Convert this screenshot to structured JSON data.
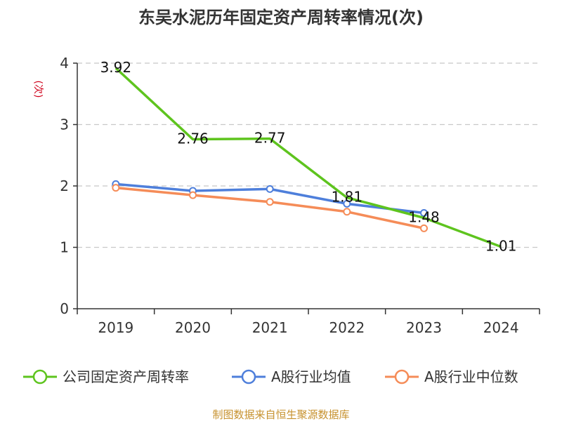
{
  "chart_data": {
    "type": "line",
    "title": "东吴水泥历年固定资产周转率情况(次)",
    "ylabel": "(次)",
    "categories": [
      "2019",
      "2020",
      "2021",
      "2022",
      "2023",
      "2024"
    ],
    "ylim": [
      0,
      4
    ],
    "yticks": [
      "0",
      "1",
      "2",
      "3",
      "4"
    ],
    "grid": true,
    "legend_position": "bottom",
    "series": [
      {
        "name": "公司固定资产周转率",
        "color": "#5ec41e",
        "values": [
          3.92,
          2.76,
          2.77,
          1.81,
          1.48,
          1.01
        ],
        "labels": [
          "3.92",
          "2.76",
          "2.77",
          "1.81",
          "1.48",
          "1.01"
        ],
        "show_markers": false
      },
      {
        "name": "A股行业均值",
        "color": "#4e7fdb",
        "values": [
          2.03,
          1.92,
          1.95,
          1.71,
          1.56,
          null
        ],
        "show_markers": true
      },
      {
        "name": "A股行业中位数",
        "color": "#f58c58",
        "values": [
          1.97,
          1.85,
          1.74,
          1.58,
          1.31,
          null
        ],
        "show_markers": true
      }
    ]
  },
  "source": {
    "text": "制图数据来自恒生聚源数据库",
    "color": "#c7922f"
  },
  "ylabel_color": "#d0021b"
}
